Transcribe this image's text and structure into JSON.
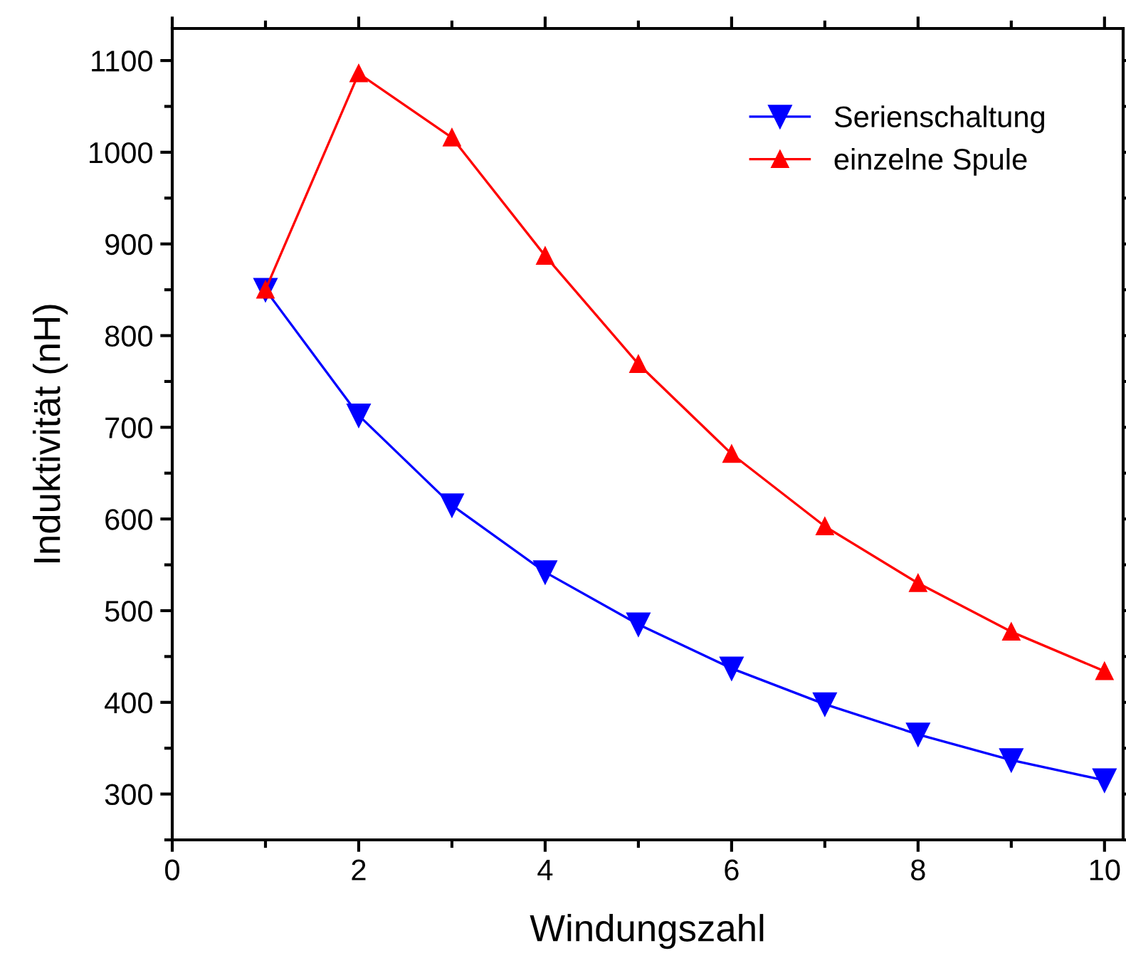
{
  "chart_data": {
    "type": "line",
    "xlabel": "Windungszahl",
    "ylabel": "Induktivität (nH)",
    "x": [
      1,
      2,
      3,
      4,
      5,
      6,
      7,
      8,
      9,
      10
    ],
    "series": [
      {
        "name": "Serienschaltung",
        "color": "#0000ff",
        "marker": "triangle_down",
        "values": [
          850,
          713,
          615,
          542,
          485,
          437,
          398,
          365,
          337,
          315
        ]
      },
      {
        "name": "einzelne Spule",
        "color": "#ff0000",
        "marker": "triangle",
        "values": [
          850,
          1086,
          1016,
          887,
          769,
          671,
          592,
          530,
          477,
          434
        ]
      }
    ],
    "xlim": [
      0,
      10.2
    ],
    "xticks": [
      0,
      2,
      4,
      6,
      8,
      10
    ],
    "ylim": [
      250,
      1135
    ],
    "yticks": [
      300,
      400,
      500,
      600,
      700,
      800,
      900,
      1000,
      1100
    ],
    "grid": false,
    "legend": "top right",
    "line_style": "solid"
  }
}
